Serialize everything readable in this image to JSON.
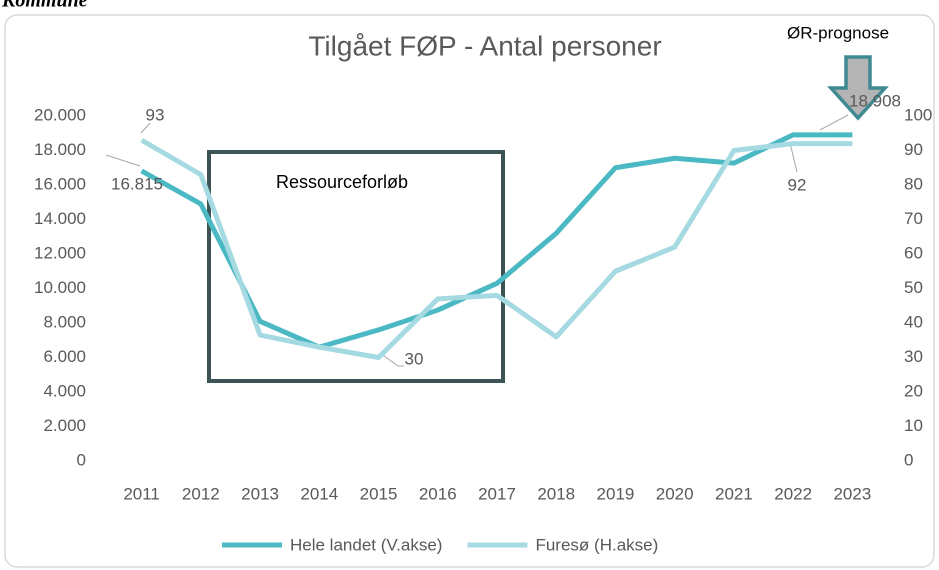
{
  "header": "Kommune",
  "chart_data": {
    "type": "line",
    "title": "Tilgået FØP - Antal personer",
    "categories": [
      "2011",
      "2012",
      "2013",
      "2014",
      "2015",
      "2016",
      "2017",
      "2018",
      "2019",
      "2020",
      "2021",
      "2022",
      "2023"
    ],
    "series": [
      {
        "name": "Hele landet (V.akse)",
        "color": "#4bb9c4",
        "axis": "y",
        "values": [
          16815,
          14900,
          8100,
          6600,
          7600,
          8750,
          10300,
          13200,
          17000,
          17550,
          17270,
          18908,
          18908
        ],
        "value_labels": [
          "16.815",
          null,
          null,
          null,
          null,
          null,
          null,
          null,
          null,
          null,
          null,
          "18.908",
          null
        ]
      },
      {
        "name": "Furesø (H.akse)",
        "color": "#a6dae2",
        "axis": "y2",
        "values": [
          93,
          83,
          36.5,
          33,
          30,
          47,
          48,
          36,
          55,
          62,
          90,
          92,
          92
        ],
        "value_labels": [
          "93",
          null,
          null,
          null,
          "30",
          null,
          null,
          null,
          null,
          null,
          null,
          "92",
          null
        ]
      }
    ],
    "ylim": [
      0,
      20000
    ],
    "yticks": [
      0,
      {
        "value": 2000,
        "label": "2.000"
      },
      {
        "value": 4000,
        "label": "4.000"
      },
      {
        "value": 6000,
        "label": "6.000"
      },
      {
        "value": 8000,
        "label": "8.000"
      },
      {
        "value": 10000,
        "label": "10.000"
      },
      {
        "value": 12000,
        "label": "12.000"
      },
      {
        "value": 14000,
        "label": "14.000"
      },
      {
        "value": 16000,
        "label": "16.000"
      },
      {
        "value": 18000,
        "label": "18.000"
      },
      {
        "value": 20000,
        "label": "20.000"
      }
    ],
    "y2lim": [
      0,
      100
    ],
    "y2ticks": [
      0,
      10,
      20,
      30,
      40,
      50,
      60,
      70,
      80,
      90,
      100
    ],
    "annotations": [
      "Ressourceforløb",
      "ØR-prognose"
    ],
    "legend": "bottom",
    "grid": false
  }
}
